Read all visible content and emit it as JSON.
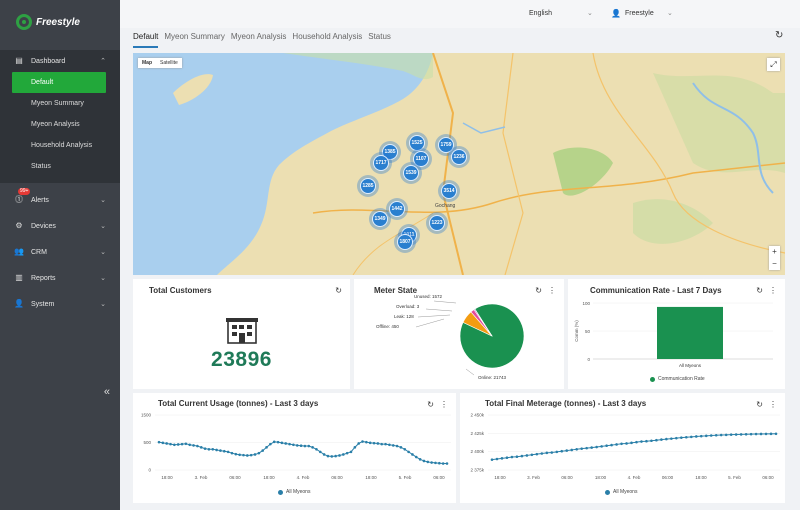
{
  "app": {
    "name": "Freestyle"
  },
  "sidebar": {
    "dashboard_label": "Dashboard",
    "sub_items": [
      "Default",
      "Myeon Summary",
      "Myeon Analysis",
      "Household Analysis",
      "Status"
    ],
    "alerts_label": "Alerts",
    "alerts_badge": "99+",
    "devices_label": "Devices",
    "crm_label": "CRM",
    "reports_label": "Reports",
    "system_label": "System",
    "collapse_glyph": "«"
  },
  "topbar": {
    "language": "English",
    "user": "Freestyle"
  },
  "tabs": [
    "Default",
    "Myeon Summary",
    "Myeon Analysis",
    "Household Analysis",
    "Status"
  ],
  "map": {
    "type_map": "Map",
    "type_satellite": "Satellite",
    "clusters": [
      "1385",
      "1525",
      "1759",
      "1717",
      "1107",
      "1236",
      "1539",
      "1285",
      "3514",
      "1442",
      "1349",
      "1223",
      "1011",
      "1807"
    ],
    "place_label": "Gochang"
  },
  "total_customers": {
    "title": "Total Customers",
    "value": "23896"
  },
  "meter_state": {
    "title": "Meter State",
    "labels": [
      "Unused: 1572",
      "Overload: 3",
      "Leak: 128",
      "Offline: 450",
      "Online: 21743"
    ],
    "chart_data": {
      "type": "pie",
      "categories": [
        "Online",
        "Unused",
        "Offline",
        "Leak",
        "Overload"
      ],
      "values": [
        21743,
        1572,
        450,
        128,
        3
      ],
      "colors": [
        "#1a9150",
        "#f39c12",
        "#e44b9a",
        "#8e44ad",
        "#e74c3c"
      ]
    }
  },
  "communication_rate": {
    "title": "Communication Rate - Last 7 Days",
    "legend": "Communication Rate",
    "chart_data": {
      "type": "bar",
      "categories": [
        "All Myeons"
      ],
      "values": [
        93
      ],
      "ylabel": "Comm (%)",
      "yticks": [
        "100",
        "50",
        "0"
      ],
      "ylim": [
        0,
        100
      ],
      "color": "#1a9150"
    }
  },
  "current_usage": {
    "title": "Total Current Usage (tonnes) - Last 3 days",
    "legend": "All Myeons",
    "chart_data": {
      "type": "line",
      "yticks": [
        "1500",
        "500",
        "0"
      ],
      "xticks": [
        "18:00",
        "3. Feb",
        "06:00",
        "18:00",
        "4. Feb",
        "06:00",
        "18:00",
        "5. Feb",
        "06:00"
      ],
      "ylim": [
        0,
        1700
      ],
      "values": [
        860,
        840,
        820,
        800,
        780,
        790,
        800,
        810,
        780,
        760,
        740,
        700,
        660,
        640,
        640,
        620,
        600,
        580,
        560,
        520,
        490,
        470,
        460,
        450,
        460,
        480,
        520,
        600,
        700,
        800,
        870,
        860,
        840,
        820,
        800,
        780,
        760,
        750,
        740,
        740,
        700,
        640,
        560,
        480,
        430,
        420,
        430,
        450,
        480,
        520,
        560,
        700,
        820,
        880,
        860,
        840,
        830,
        820,
        800,
        800,
        780,
        760,
        740,
        700,
        640,
        560,
        480,
        400,
        330,
        280,
        250,
        230,
        220,
        210,
        200,
        200
      ],
      "color": "#2a7fa8"
    }
  },
  "final_meterage": {
    "title": "Total Final Meterage (tonnes) - Last 3 days",
    "legend": "All Myeons",
    "chart_data": {
      "type": "line",
      "yticks": [
        "2 450k",
        "2 425k",
        "2 400k",
        "2 375k"
      ],
      "xticks": [
        "18:00",
        "3. Feb",
        "06:00",
        "18:00",
        "4. Feb",
        "06:00",
        "18:00",
        "5. Feb",
        "06:00"
      ],
      "ylim": [
        2370000,
        2455000
      ],
      "values": [
        2386000,
        2387000,
        2388000,
        2389000,
        2390000,
        2390500,
        2391500,
        2392500,
        2393500,
        2394500,
        2395500,
        2396500,
        2397000,
        2398000,
        2399000,
        2400000,
        2401000,
        2402000,
        2403000,
        2403800,
        2404600,
        2405500,
        2406500,
        2407500,
        2408500,
        2409500,
        2410500,
        2411000,
        2412000,
        2413000,
        2414000,
        2414500,
        2415200,
        2416000,
        2417000,
        2417800,
        2418500,
        2419200,
        2420000,
        2420600,
        2421200,
        2421800,
        2422300,
        2422800,
        2423300,
        2423700,
        2424000,
        2424300,
        2424600,
        2424800,
        2425000,
        2425200,
        2425400,
        2425600,
        2425700,
        2425800,
        2425900,
        2426000
      ],
      "color": "#2a7fa8"
    }
  }
}
